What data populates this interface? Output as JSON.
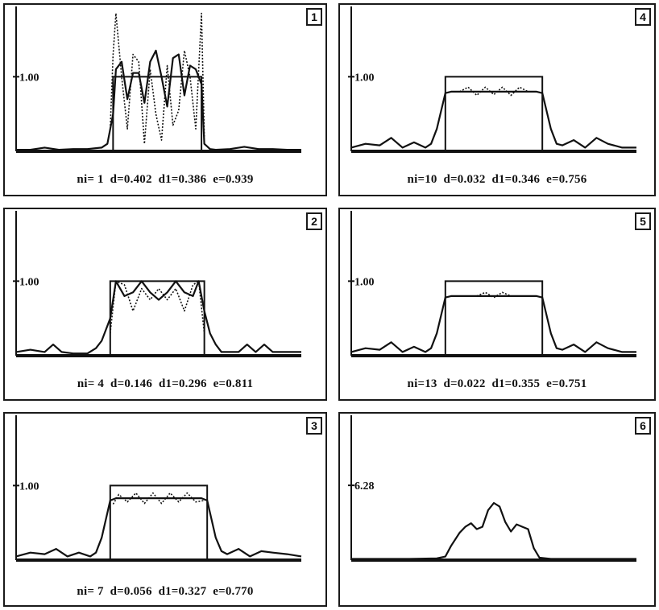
{
  "chart_data": [
    {
      "type": "line",
      "panel_number": "1",
      "ytick_label": "1.00",
      "caption": "ni= 1  d=0.402  d1=0.386  e=0.939",
      "ylim": [
        0,
        1.9
      ],
      "target_level": 1.0,
      "series": [
        {
          "style": "solid",
          "x": [
            0,
            0.05,
            0.1,
            0.15,
            0.2,
            0.25,
            0.3,
            0.32,
            0.34,
            0.35,
            0.37,
            0.39,
            0.41,
            0.43,
            0.45,
            0.47,
            0.49,
            0.51,
            0.53,
            0.55,
            0.57,
            0.59,
            0.61,
            0.63,
            0.65,
            0.66,
            0.68,
            0.7,
            0.75,
            0.8,
            0.85,
            0.9,
            0.95,
            1
          ],
          "y": [
            0.02,
            0.02,
            0.05,
            0.02,
            0.03,
            0.03,
            0.05,
            0.1,
            0.5,
            1.1,
            1.2,
            0.7,
            1.05,
            1.05,
            0.65,
            1.2,
            1.35,
            1.0,
            0.6,
            1.25,
            1.3,
            0.75,
            1.15,
            1.1,
            0.9,
            0.1,
            0.03,
            0.02,
            0.03,
            0.06,
            0.03,
            0.03,
            0.02,
            0.02
          ]
        },
        {
          "style": "dotted",
          "x": [
            0.33,
            0.34,
            0.35,
            0.37,
            0.39,
            0.41,
            0.43,
            0.45,
            0.47,
            0.49,
            0.51,
            0.53,
            0.55,
            0.57,
            0.59,
            0.61,
            0.63,
            0.65,
            0.66
          ],
          "y": [
            0.3,
            1.3,
            1.85,
            1.0,
            0.3,
            1.3,
            1.2,
            0.1,
            1.1,
            0.5,
            0.15,
            1.15,
            0.35,
            0.55,
            1.35,
            1.0,
            0.3,
            1.85,
            0.2
          ]
        }
      ]
    },
    {
      "type": "line",
      "panel_number": "2",
      "ytick_label": "1.00",
      "caption": "ni= 4  d=0.146  d1=0.296  e=0.811",
      "ylim": [
        0,
        1.9
      ],
      "target_level": 1.0,
      "series": [
        {
          "style": "solid",
          "x": [
            0,
            0.05,
            0.1,
            0.13,
            0.16,
            0.2,
            0.25,
            0.28,
            0.3,
            0.33,
            0.35,
            0.38,
            0.41,
            0.44,
            0.47,
            0.5,
            0.53,
            0.56,
            0.59,
            0.62,
            0.64,
            0.66,
            0.68,
            0.7,
            0.72,
            0.75,
            0.78,
            0.81,
            0.84,
            0.87,
            0.9,
            0.95,
            1
          ],
          "y": [
            0.05,
            0.08,
            0.05,
            0.15,
            0.05,
            0.03,
            0.03,
            0.1,
            0.2,
            0.5,
            1.0,
            0.8,
            0.85,
            1.0,
            0.85,
            0.75,
            0.85,
            1.0,
            0.85,
            0.8,
            1.0,
            0.6,
            0.3,
            0.15,
            0.05,
            0.05,
            0.05,
            0.15,
            0.05,
            0.15,
            0.05,
            0.05,
            0.05
          ]
        },
        {
          "style": "dotted",
          "x": [
            0.33,
            0.35,
            0.38,
            0.41,
            0.44,
            0.47,
            0.5,
            0.53,
            0.56,
            0.59,
            0.62,
            0.64,
            0.66
          ],
          "y": [
            0.3,
            1.0,
            0.95,
            0.6,
            0.9,
            0.75,
            0.9,
            0.75,
            0.9,
            0.6,
            0.95,
            1.0,
            0.3
          ]
        }
      ]
    },
    {
      "type": "line",
      "panel_number": "3",
      "ytick_label": "1.00",
      "caption": "ni= 7  d=0.056  d1=0.327  e=0.770",
      "ylim": [
        0,
        1.9
      ],
      "target_level": 1.0,
      "series": [
        {
          "style": "solid",
          "x": [
            0,
            0.05,
            0.1,
            0.14,
            0.18,
            0.22,
            0.26,
            0.28,
            0.3,
            0.33,
            0.35,
            0.42,
            0.5,
            0.58,
            0.65,
            0.67,
            0.7,
            0.72,
            0.74,
            0.78,
            0.82,
            0.86,
            0.9,
            0.95,
            1
          ],
          "y": [
            0.05,
            0.1,
            0.08,
            0.15,
            0.05,
            0.1,
            0.05,
            0.1,
            0.3,
            0.8,
            0.83,
            0.83,
            0.83,
            0.83,
            0.83,
            0.8,
            0.3,
            0.12,
            0.08,
            0.15,
            0.05,
            0.12,
            0.1,
            0.08,
            0.05
          ]
        },
        {
          "style": "dotted",
          "x": [
            0.34,
            0.36,
            0.39,
            0.42,
            0.45,
            0.48,
            0.51,
            0.54,
            0.57,
            0.6,
            0.63,
            0.66
          ],
          "y": [
            0.75,
            0.88,
            0.78,
            0.9,
            0.76,
            0.9,
            0.76,
            0.9,
            0.78,
            0.9,
            0.78,
            0.8
          ]
        }
      ]
    },
    {
      "type": "line",
      "panel_number": "4",
      "ytick_label": "1.00",
      "caption": "ni=10  d=0.032  d1=0.346  e=0.756",
      "ylim": [
        0,
        1.9
      ],
      "target_level": 1.0,
      "series": [
        {
          "style": "solid",
          "x": [
            0,
            0.05,
            0.1,
            0.14,
            0.18,
            0.22,
            0.26,
            0.28,
            0.3,
            0.33,
            0.35,
            0.42,
            0.5,
            0.58,
            0.65,
            0.67,
            0.7,
            0.72,
            0.74,
            0.78,
            0.82,
            0.86,
            0.9,
            0.95,
            1
          ],
          "y": [
            0.05,
            0.1,
            0.08,
            0.18,
            0.05,
            0.12,
            0.05,
            0.1,
            0.3,
            0.78,
            0.8,
            0.8,
            0.8,
            0.8,
            0.8,
            0.78,
            0.3,
            0.1,
            0.08,
            0.15,
            0.05,
            0.18,
            0.1,
            0.05,
            0.05
          ]
        },
        {
          "style": "dotted",
          "x": [
            0.38,
            0.41,
            0.44,
            0.47,
            0.5,
            0.53,
            0.56,
            0.59,
            0.62
          ],
          "y": [
            0.8,
            0.86,
            0.75,
            0.86,
            0.76,
            0.86,
            0.75,
            0.86,
            0.8
          ]
        }
      ]
    },
    {
      "type": "line",
      "panel_number": "5",
      "ytick_label": "1.00",
      "caption": "ni=13  d=0.022  d1=0.355  e=0.751",
      "ylim": [
        0,
        1.9
      ],
      "target_level": 1.0,
      "series": [
        {
          "style": "solid",
          "x": [
            0,
            0.05,
            0.1,
            0.14,
            0.18,
            0.22,
            0.26,
            0.28,
            0.3,
            0.33,
            0.35,
            0.42,
            0.5,
            0.58,
            0.65,
            0.67,
            0.7,
            0.72,
            0.74,
            0.78,
            0.82,
            0.86,
            0.9,
            0.95,
            1
          ],
          "y": [
            0.05,
            0.1,
            0.08,
            0.18,
            0.05,
            0.12,
            0.05,
            0.1,
            0.3,
            0.78,
            0.8,
            0.8,
            0.8,
            0.8,
            0.8,
            0.78,
            0.3,
            0.1,
            0.08,
            0.15,
            0.05,
            0.18,
            0.1,
            0.05,
            0.05
          ]
        },
        {
          "style": "dotted",
          "x": [
            0.44,
            0.47,
            0.5,
            0.53,
            0.56
          ],
          "y": [
            0.8,
            0.85,
            0.78,
            0.85,
            0.8
          ]
        }
      ]
    },
    {
      "type": "line",
      "panel_number": "6",
      "ytick_label": "6.28",
      "caption": "",
      "ylim": [
        0,
        11.9
      ],
      "target_level": null,
      "series": [
        {
          "style": "solid",
          "x": [
            0,
            0.1,
            0.2,
            0.3,
            0.33,
            0.35,
            0.38,
            0.4,
            0.42,
            0.44,
            0.46,
            0.48,
            0.5,
            0.52,
            0.54,
            0.56,
            0.58,
            0.6,
            0.62,
            0.64,
            0.66,
            0.7,
            0.8,
            0.9,
            1
          ],
          "y": [
            0.1,
            0.1,
            0.1,
            0.15,
            0.3,
            1.2,
            2.3,
            2.8,
            3.1,
            2.6,
            2.8,
            4.2,
            4.8,
            4.5,
            3.2,
            2.4,
            3.0,
            2.8,
            2.6,
            1.0,
            0.2,
            0.1,
            0.1,
            0.1,
            0.1
          ]
        }
      ]
    }
  ]
}
